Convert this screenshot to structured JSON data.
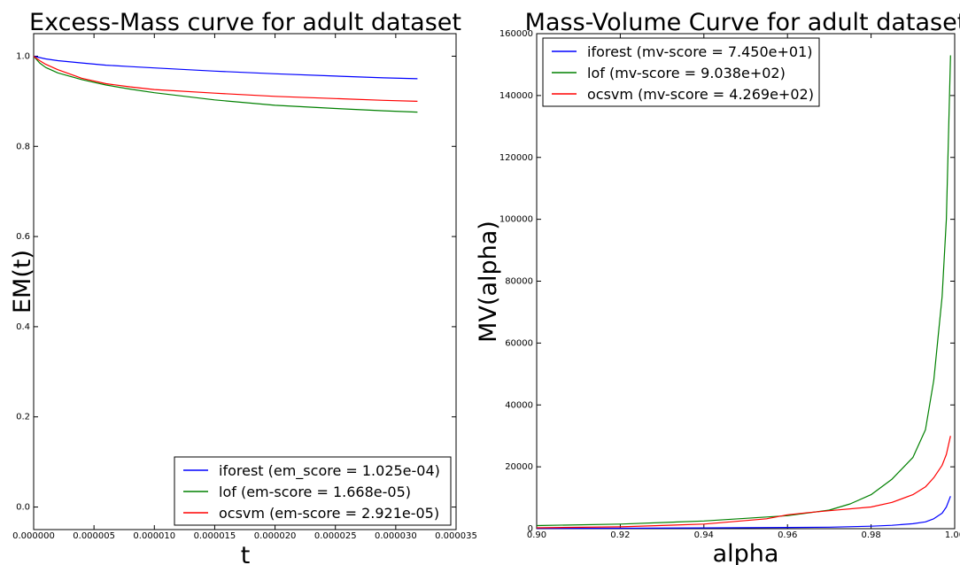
{
  "chart_data": [
    {
      "type": "line",
      "title": "Excess-Mass curve for adult dataset",
      "xlabel": "t",
      "ylabel": "EM(t)",
      "xlim": [
        0,
        3.5e-05
      ],
      "ylim": [
        -0.05,
        1.05
      ],
      "x_tick_labels": [
        "0.000000",
        "0.000005",
        "0.000010",
        "0.000015",
        "0.000020",
        "0.000025",
        "0.000030",
        "0.000035"
      ],
      "y_tick_labels": [
        "0.0",
        "0.2",
        "0.4",
        "0.6",
        "0.8",
        "1.0"
      ],
      "legend_position": "lower-right",
      "series": [
        {
          "name": "iforest (em_score = 1.025e-04)",
          "color": "#0000ff",
          "x": [
            0,
            5e-07,
            1e-06,
            2e-06,
            4e-06,
            6e-06,
            8e-06,
            1e-05,
            1.5e-05,
            2e-05,
            2.5e-05,
            2.9e-05,
            3.18e-05
          ],
          "y": [
            1.0,
            0.997,
            0.994,
            0.99,
            0.985,
            0.98,
            0.977,
            0.974,
            0.967,
            0.961,
            0.956,
            0.952,
            0.95
          ]
        },
        {
          "name": "lof (em-score = 1.668e-05)",
          "color": "#008000",
          "x": [
            0,
            5e-07,
            1e-06,
            2e-06,
            4e-06,
            6e-06,
            8e-06,
            1e-05,
            1.5e-05,
            2e-05,
            2.5e-05,
            2.9e-05,
            3.18e-05
          ],
          "y": [
            1.0,
            0.985,
            0.975,
            0.963,
            0.948,
            0.936,
            0.927,
            0.919,
            0.903,
            0.891,
            0.884,
            0.879,
            0.876
          ]
        },
        {
          "name": "ocsvm (em-score = 2.921e-05)",
          "color": "#ff0000",
          "x": [
            0,
            5e-07,
            1e-06,
            2e-06,
            4e-06,
            6e-06,
            8e-06,
            1e-05,
            1.5e-05,
            2e-05,
            2.5e-05,
            2.9e-05,
            3.18e-05
          ],
          "y": [
            1.0,
            0.99,
            0.982,
            0.97,
            0.951,
            0.939,
            0.932,
            0.926,
            0.918,
            0.911,
            0.906,
            0.902,
            0.9
          ]
        }
      ]
    },
    {
      "type": "line",
      "title": "Mass-Volume Curve for adult dataset",
      "xlabel": "alpha",
      "ylabel": "MV(alpha)",
      "xlim": [
        0.9,
        1.0
      ],
      "ylim": [
        0,
        160000
      ],
      "x_tick_labels": [
        "0.90",
        "0.92",
        "0.94",
        "0.96",
        "0.98",
        "1.00"
      ],
      "y_tick_labels": [
        "0",
        "20000",
        "40000",
        "60000",
        "80000",
        "100000",
        "120000",
        "140000",
        "160000"
      ],
      "legend_position": "upper-left",
      "series": [
        {
          "name": "iforest (mv-score = 7.450e+01)",
          "color": "#0000ff",
          "x": [
            0.9,
            0.92,
            0.94,
            0.96,
            0.97,
            0.98,
            0.985,
            0.99,
            0.993,
            0.995,
            0.997,
            0.998,
            0.999
          ],
          "y": [
            100,
            150,
            250,
            400,
            500,
            800,
            1100,
            1600,
            2200,
            3200,
            5000,
            7000,
            10500
          ]
        },
        {
          "name": "lof (mv-score = 9.038e+02)",
          "color": "#008000",
          "x": [
            0.9,
            0.92,
            0.94,
            0.96,
            0.97,
            0.975,
            0.98,
            0.985,
            0.99,
            0.993,
            0.995,
            0.997,
            0.998,
            0.999
          ],
          "y": [
            1000,
            1500,
            2500,
            4200,
            6000,
            8000,
            11000,
            16000,
            23000,
            32000,
            48000,
            75000,
            100000,
            153000
          ]
        },
        {
          "name": "ocsvm (mv-score = 4.269e+02)",
          "color": "#ff0000",
          "x": [
            0.9,
            0.92,
            0.94,
            0.955,
            0.96,
            0.965,
            0.97,
            0.98,
            0.985,
            0.99,
            0.993,
            0.995,
            0.997,
            0.998,
            0.999
          ],
          "y": [
            300,
            600,
            1500,
            3200,
            4500,
            5200,
            5800,
            7000,
            8500,
            11000,
            13500,
            16500,
            20500,
            24000,
            30000
          ]
        }
      ]
    }
  ]
}
